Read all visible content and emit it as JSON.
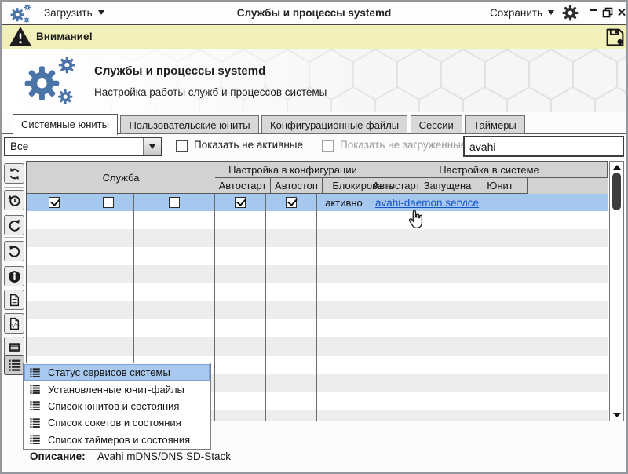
{
  "window": {
    "title": "Службы и процессы systemd",
    "load_menu_label": "Загрузить",
    "save_menu_label": "Сохранить"
  },
  "warning_bar": {
    "text": "Внимание!"
  },
  "app_header": {
    "title": "Службы и процессы systemd",
    "subtitle": "Настройка работы служб и процессов системы"
  },
  "tabs": [
    {
      "label": "Системные юниты",
      "active": true
    },
    {
      "label": "Пользовательские юниты",
      "active": false
    },
    {
      "label": "Конфигурационные файлы",
      "active": false
    },
    {
      "label": "Сессии",
      "active": false
    },
    {
      "label": "Таймеры",
      "active": false
    }
  ],
  "filter_bar": {
    "unit_filter_value": "Все",
    "show_inactive_label": "Показать не активные",
    "show_inactive_checked": false,
    "show_unloaded_label": "Показать не загруженные",
    "show_unloaded_checked": false,
    "search_value": "avahi"
  },
  "toolbar": {
    "buttons": [
      "refresh",
      "history",
      "redo",
      "undo",
      "info",
      "document",
      "document-code",
      "list-view",
      "list-menu"
    ]
  },
  "table": {
    "group_headers": {
      "config": "Настройка в конфигурации",
      "system": "Настройка в системе",
      "service": "Служба"
    },
    "columns": [
      "Автостарт",
      "Автостоп",
      "Блокировать",
      "Автостарт",
      "Запущена",
      "Юнит"
    ],
    "row": {
      "autostart_config": true,
      "autostop": false,
      "block": false,
      "autostart_system": true,
      "running": true,
      "unit_state": "активно",
      "service_link": "avahi-daemon.service",
      "selected": true
    },
    "empty_rows": 12
  },
  "context_menu": {
    "items": [
      {
        "label": "Статус сервисов системы",
        "selected": true
      },
      {
        "label": "Установленные юнит-файлы",
        "selected": false
      },
      {
        "label": "Список юнитов и состояния",
        "selected": false
      },
      {
        "label": "Список сокетов и состояния",
        "selected": false
      },
      {
        "label": "Список таймеров и состояния",
        "selected": false
      }
    ]
  },
  "description": {
    "label": "Описание:",
    "value": "Avahi mDNS/DNS SD-Stack"
  },
  "colors": {
    "accent_blue": "#4a73a8",
    "selection_blue": "#a6c8ef",
    "link_blue": "#1553c8",
    "warning_bg": "#f1f0bb",
    "table_header_gray": "#d2d2d2"
  }
}
